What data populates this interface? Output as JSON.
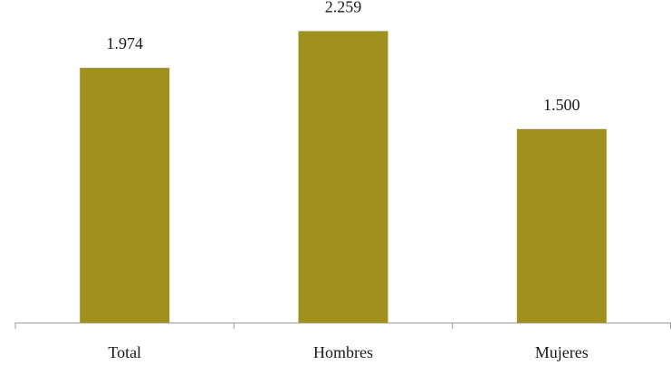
{
  "colors": {
    "bar": "#a0901d",
    "axis": "#9a9a9a",
    "text": "#1a1a1a",
    "background": "#ffffff"
  },
  "chart_data": {
    "type": "bar",
    "categories": [
      "Total",
      "Hombres",
      "Mujeres"
    ],
    "values": [
      1974,
      2259,
      1500
    ],
    "value_labels": [
      "1.974",
      "2.259",
      "1.500"
    ],
    "title": "",
    "xlabel": "",
    "ylabel": "",
    "ylim": [
      0,
      2500
    ],
    "grid": false,
    "legend": "none"
  }
}
